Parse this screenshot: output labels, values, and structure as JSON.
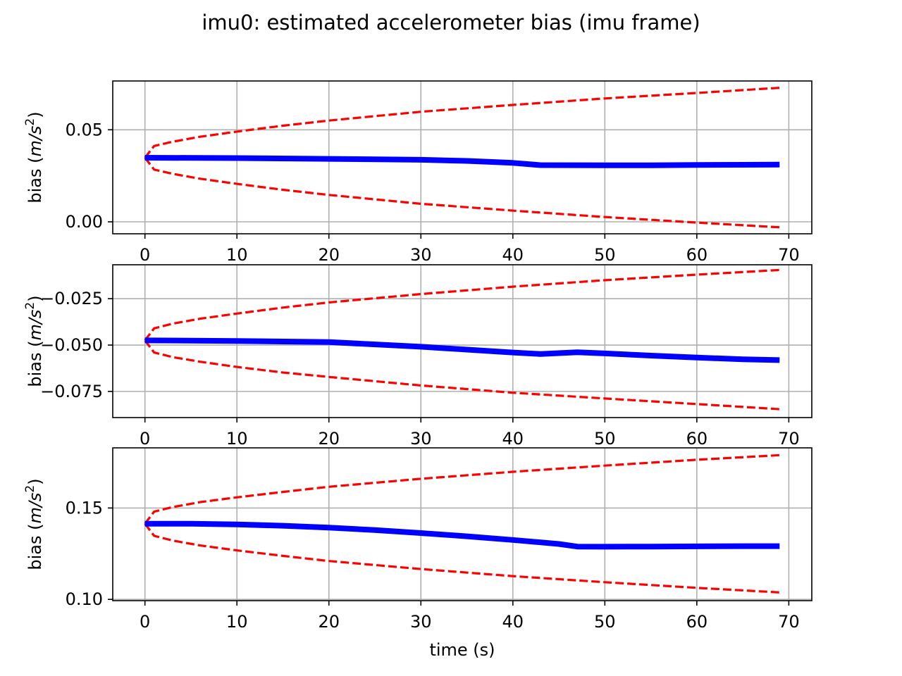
{
  "figure": {
    "title": "imu0: estimated accelerometer bias (imu frame)"
  },
  "chart_data": [
    {
      "type": "line",
      "title": "",
      "xlabel": "",
      "ylabel": "bias (m/s²)",
      "ylabel_parts": {
        "prefix": "bias (",
        "unit": "m/s",
        "exp": "2",
        "suffix": ")"
      },
      "xlim": [
        -3.5,
        72.5
      ],
      "ylim": [
        -0.0065,
        0.0765
      ],
      "xticks": [
        0,
        10,
        20,
        30,
        40,
        50,
        60,
        70
      ],
      "yticks": [
        0.0,
        0.05
      ],
      "ytick_labels": [
        "0.00",
        "0.05"
      ],
      "grid": true,
      "series": [
        {
          "role": "estimate",
          "color": "#0000ff",
          "style": "solid",
          "x": [
            0,
            10,
            20,
            30,
            35,
            40,
            43,
            50,
            55,
            60,
            65,
            69
          ],
          "y": [
            0.0348,
            0.0346,
            0.0342,
            0.0337,
            0.0331,
            0.032,
            0.0308,
            0.0307,
            0.0307,
            0.0309,
            0.031,
            0.0311
          ]
        },
        {
          "role": "upper_bound",
          "color": "#ff0000",
          "style": "dashed",
          "x": [
            0,
            1,
            3,
            6,
            10,
            15,
            20,
            30,
            40,
            50,
            60,
            69
          ],
          "y": [
            0.0348,
            0.0412,
            0.0435,
            0.0462,
            0.049,
            0.0522,
            0.055,
            0.0598,
            0.0635,
            0.067,
            0.07,
            0.0728
          ]
        },
        {
          "role": "lower_bound",
          "color": "#ff0000",
          "style": "dashed",
          "x": [
            0,
            1,
            3,
            6,
            10,
            15,
            20,
            30,
            40,
            50,
            60,
            69
          ],
          "y": [
            0.0348,
            0.0284,
            0.0261,
            0.0234,
            0.0206,
            0.0174,
            0.0146,
            0.0098,
            0.0061,
            0.0026,
            -0.0004,
            -0.003
          ]
        }
      ]
    },
    {
      "type": "line",
      "title": "",
      "xlabel": "",
      "ylabel": "bias (m/s²)",
      "ylabel_parts": {
        "prefix": "bias (",
        "unit": "m/s",
        "exp": "2",
        "suffix": ")"
      },
      "xlim": [
        -3.5,
        72.5
      ],
      "ylim": [
        -0.0891,
        -0.0067
      ],
      "xticks": [
        0,
        10,
        20,
        30,
        40,
        50,
        60,
        70
      ],
      "yticks": [
        -0.025,
        -0.05,
        -0.075
      ],
      "ytick_labels": [
        "−0.025",
        "−0.050",
        "−0.075"
      ],
      "grid": true,
      "series": [
        {
          "role": "estimate",
          "color": "#0000ff",
          "style": "solid",
          "x": [
            0,
            5,
            10,
            20,
            30,
            40,
            43,
            47,
            50,
            55,
            60,
            65,
            69
          ],
          "y": [
            -0.0475,
            -0.0476,
            -0.0478,
            -0.0484,
            -0.0509,
            -0.054,
            -0.0548,
            -0.0539,
            -0.0545,
            -0.0557,
            -0.0567,
            -0.0577,
            -0.0581
          ]
        },
        {
          "role": "upper_bound",
          "color": "#ff0000",
          "style": "dashed",
          "x": [
            0,
            1,
            3,
            6,
            10,
            15,
            20,
            30,
            40,
            50,
            60,
            69
          ],
          "y": [
            -0.0475,
            -0.041,
            -0.0385,
            -0.0358,
            -0.033,
            -0.0298,
            -0.027,
            -0.0225,
            -0.0185,
            -0.015,
            -0.012,
            -0.0095
          ]
        },
        {
          "role": "lower_bound",
          "color": "#ff0000",
          "style": "dashed",
          "x": [
            0,
            1,
            3,
            6,
            10,
            15,
            20,
            30,
            40,
            50,
            60,
            69
          ],
          "y": [
            -0.0475,
            -0.054,
            -0.0565,
            -0.059,
            -0.0618,
            -0.0648,
            -0.0672,
            -0.0718,
            -0.0757,
            -0.0788,
            -0.0818,
            -0.0846
          ]
        }
      ]
    },
    {
      "type": "line",
      "title": "",
      "xlabel": "time (s)",
      "ylabel": "bias (m/s²)",
      "ylabel_parts": {
        "prefix": "bias (",
        "unit": "m/s",
        "exp": "2",
        "suffix": ")"
      },
      "xlim": [
        -3.5,
        72.5
      ],
      "ylim": [
        0.0993,
        0.1829
      ],
      "xticks": [
        0,
        10,
        20,
        30,
        40,
        50,
        60,
        70
      ],
      "yticks": [
        0.1,
        0.15
      ],
      "ytick_labels": [
        "0.10",
        "0.15"
      ],
      "grid": true,
      "series": [
        {
          "role": "estimate",
          "color": "#0000ff",
          "style": "solid",
          "x": [
            0,
            5,
            10,
            15,
            20,
            25,
            30,
            35,
            40,
            45,
            47,
            50,
            55,
            60,
            65,
            69
          ],
          "y": [
            0.1414,
            0.1414,
            0.141,
            0.1403,
            0.1393,
            0.1379,
            0.1363,
            0.1345,
            0.1325,
            0.1303,
            0.1289,
            0.1288,
            0.1289,
            0.129,
            0.1291,
            0.1291
          ]
        },
        {
          "role": "upper_bound",
          "color": "#ff0000",
          "style": "dashed",
          "x": [
            0,
            1,
            3,
            6,
            10,
            15,
            20,
            30,
            40,
            50,
            60,
            69
          ],
          "y": [
            0.1414,
            0.148,
            0.1505,
            0.1532,
            0.1558,
            0.1588,
            0.1616,
            0.166,
            0.1698,
            0.1732,
            0.1764,
            0.1789
          ]
        },
        {
          "role": "lower_bound",
          "color": "#ff0000",
          "style": "dashed",
          "x": [
            0,
            1,
            3,
            6,
            10,
            15,
            20,
            30,
            40,
            50,
            60,
            69
          ],
          "y": [
            0.1414,
            0.1348,
            0.1322,
            0.1295,
            0.1268,
            0.1238,
            0.121,
            0.1166,
            0.1127,
            0.1094,
            0.1063,
            0.1038
          ]
        }
      ]
    }
  ]
}
